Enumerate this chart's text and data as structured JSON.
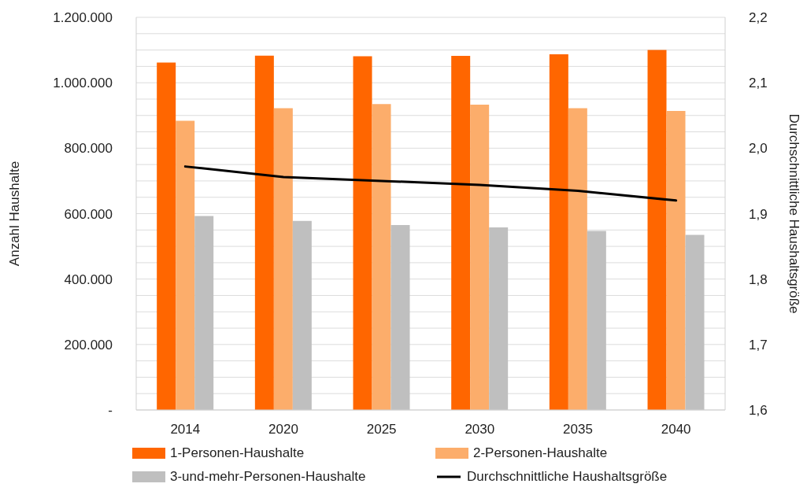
{
  "chart_data": {
    "type": "bar",
    "categories": [
      "2014",
      "2020",
      "2025",
      "2030",
      "2035",
      "2040"
    ],
    "ylabel": "Anzahl Haushalte",
    "y2label": "Durchschnittliche Haushaltsgröße",
    "series": [
      {
        "name": "1-Personen-Haushalte",
        "color": "#ff6600",
        "values": [
          1062000,
          1083000,
          1081000,
          1082000,
          1087000,
          1100000
        ]
      },
      {
        "name": "2-Personen-Haushalte",
        "color": "#fcad6b",
        "values": [
          884000,
          922000,
          935000,
          933000,
          922000,
          914000
        ]
      },
      {
        "name": "3-und-mehr-Personen-Haushalte",
        "color": "#bfbfbf",
        "values": [
          593000,
          578000,
          565000,
          558000,
          547000,
          535000
        ]
      },
      {
        "name": "Durchschnittliche Haushaltsgröße",
        "type": "line",
        "axis": "y2",
        "color": "#000000",
        "values": [
          1.972,
          1.956,
          1.95,
          1.944,
          1.935,
          1.92
        ]
      }
    ],
    "ylim": [
      0,
      1200000
    ],
    "yticks": [
      {
        "value": 0,
        "label": "-"
      },
      {
        "value": 50000,
        "label": null
      },
      {
        "value": 100000,
        "label": null
      },
      {
        "value": 150000,
        "label": null
      },
      {
        "value": 200000,
        "label": "200.000"
      },
      {
        "value": 250000,
        "label": null
      },
      {
        "value": 300000,
        "label": null
      },
      {
        "value": 350000,
        "label": null
      },
      {
        "value": 400000,
        "label": "400.000"
      },
      {
        "value": 450000,
        "label": null
      },
      {
        "value": 500000,
        "label": null
      },
      {
        "value": 550000,
        "label": null
      },
      {
        "value": 600000,
        "label": "600.000"
      },
      {
        "value": 650000,
        "label": null
      },
      {
        "value": 700000,
        "label": null
      },
      {
        "value": 750000,
        "label": null
      },
      {
        "value": 800000,
        "label": "800.000"
      },
      {
        "value": 850000,
        "label": null
      },
      {
        "value": 900000,
        "label": null
      },
      {
        "value": 950000,
        "label": null
      },
      {
        "value": 1000000,
        "label": "1.000.000"
      },
      {
        "value": 1050000,
        "label": null
      },
      {
        "value": 1100000,
        "label": null
      },
      {
        "value": 1150000,
        "label": null
      },
      {
        "value": 1200000,
        "label": "1.200.000"
      }
    ],
    "y2lim": [
      1.6,
      2.2
    ],
    "y2ticks": [
      {
        "value": 1.6,
        "label": "1,6"
      },
      {
        "value": 1.7,
        "label": "1,7"
      },
      {
        "value": 1.8,
        "label": "1,8"
      },
      {
        "value": 1.9,
        "label": "1,9"
      },
      {
        "value": 2.0,
        "label": "2,0"
      },
      {
        "value": 2.1,
        "label": "2,1"
      },
      {
        "value": 2.2,
        "label": "2,2"
      }
    ],
    "grid": "y",
    "legend": "bottom",
    "marker": "none",
    "line_style": "solid"
  }
}
